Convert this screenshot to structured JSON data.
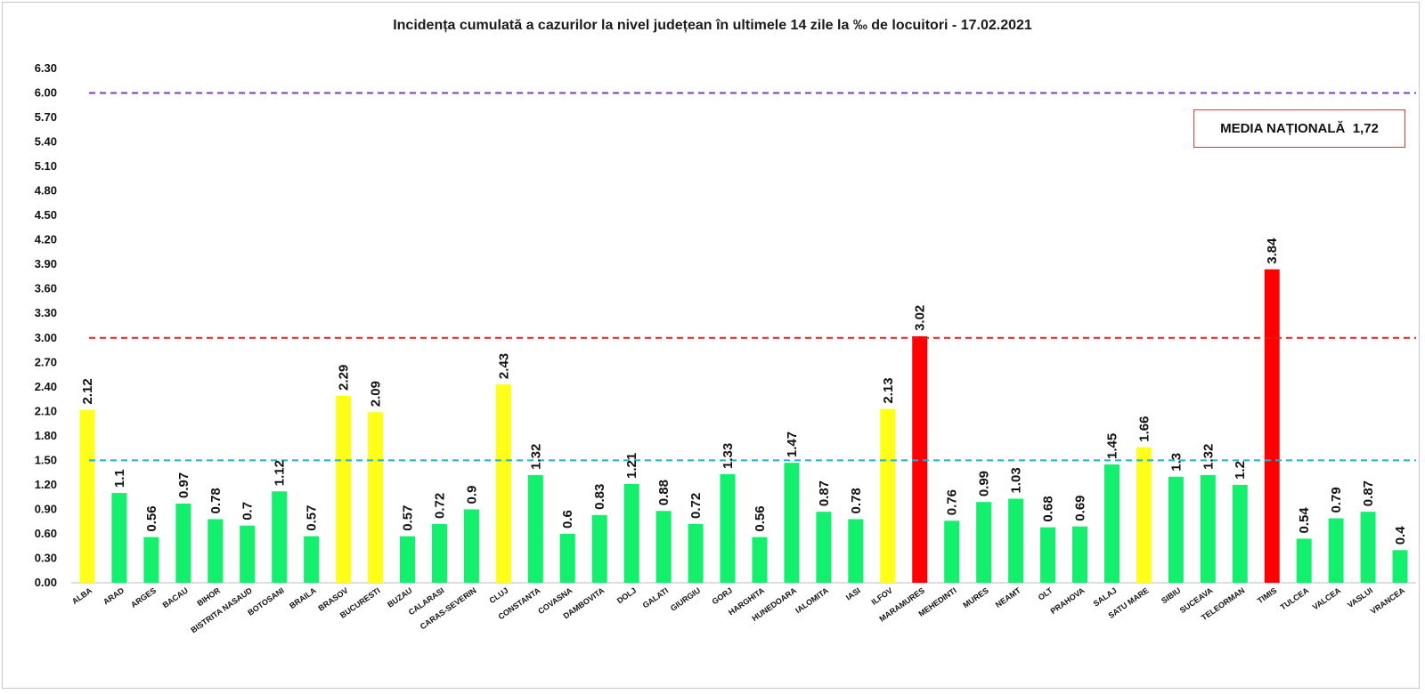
{
  "chart_data": {
    "type": "bar",
    "title": "Incidența cumulată a cazurilor la nivel județean în ultimele 14 zile la ‰ de locuitori - 17.02.2021",
    "xlabel": "",
    "ylabel": "",
    "ylim": [
      0,
      6.3
    ],
    "yticks": [
      "0.00",
      "0.30",
      "0.60",
      "0.90",
      "1.20",
      "1.50",
      "1.80",
      "2.10",
      "2.40",
      "2.70",
      "3.00",
      "3.30",
      "3.60",
      "3.90",
      "4.20",
      "4.50",
      "4.80",
      "5.10",
      "5.40",
      "5.70",
      "6.00",
      "6.30"
    ],
    "categories": [
      "ALBA",
      "ARAD",
      "ARGES",
      "BACAU",
      "BIHOR",
      "BISTRITA NASAUD",
      "BOTOSANI",
      "BRAILA",
      "BRASOV",
      "BUCURESTI",
      "BUZAU",
      "CALARASI",
      "CARAS-SEVERIN",
      "CLUJ",
      "CONSTANTA",
      "COVASNA",
      "DAMBOVITA",
      "DOLJ",
      "GALATI",
      "GIURGIU",
      "GORJ",
      "HARGHITA",
      "HUNEDOARA",
      "IALOMITA",
      "IASI",
      "ILFOV",
      "MARAMURES",
      "MEHEDINTI",
      "MURES",
      "NEAMT",
      "OLT",
      "PRAHOVA",
      "SALAJ",
      "SATU MARE",
      "SIBIU",
      "SUCEAVA",
      "TELEORMAN",
      "TIMIS",
      "TULCEA",
      "VALCEA",
      "VASLUI",
      "VRANCEA"
    ],
    "values": [
      2.12,
      1.1,
      0.56,
      0.97,
      0.78,
      0.7,
      1.12,
      0.57,
      2.29,
      2.09,
      0.57,
      0.72,
      0.9,
      2.43,
      1.32,
      0.6,
      0.83,
      1.21,
      0.88,
      0.72,
      1.33,
      0.56,
      1.47,
      0.87,
      0.78,
      2.13,
      3.02,
      0.76,
      0.99,
      1.03,
      0.68,
      0.69,
      1.45,
      1.66,
      1.3,
      1.32,
      1.2,
      3.84,
      0.54,
      0.79,
      0.87,
      0.4
    ],
    "value_labels": [
      "2.12",
      "1.1",
      "0.56",
      "0.97",
      "0.78",
      "0.7",
      "1.12",
      "0.57",
      "2.29",
      "2.09",
      "0.57",
      "0.72",
      "0.9",
      "2.43",
      "1.32",
      "0.6",
      "0.83",
      "1.21",
      "0.88",
      "0.72",
      "1.33",
      "0.56",
      "1.47",
      "0.87",
      "0.78",
      "2.13",
      "3.02",
      "0.76",
      "0.99",
      "1.03",
      "0.68",
      "0.69",
      "1.45",
      "1.66",
      "1.3",
      "1.32",
      "1.2",
      "3.84",
      "0.54",
      "0.79",
      "0.87",
      "0.4"
    ],
    "thresholds": [
      {
        "value": 1.5,
        "color": "#1fb0d8"
      },
      {
        "value": 3.0,
        "color": "#e02020"
      },
      {
        "value": 6.0,
        "color": "#7b3fbf"
      }
    ],
    "colors": {
      "green": "#14f06e",
      "yellow": "#ffff1a",
      "red": "#ff0000"
    },
    "annotation": "MEDIA NAȚIONALĂ  1,72"
  }
}
